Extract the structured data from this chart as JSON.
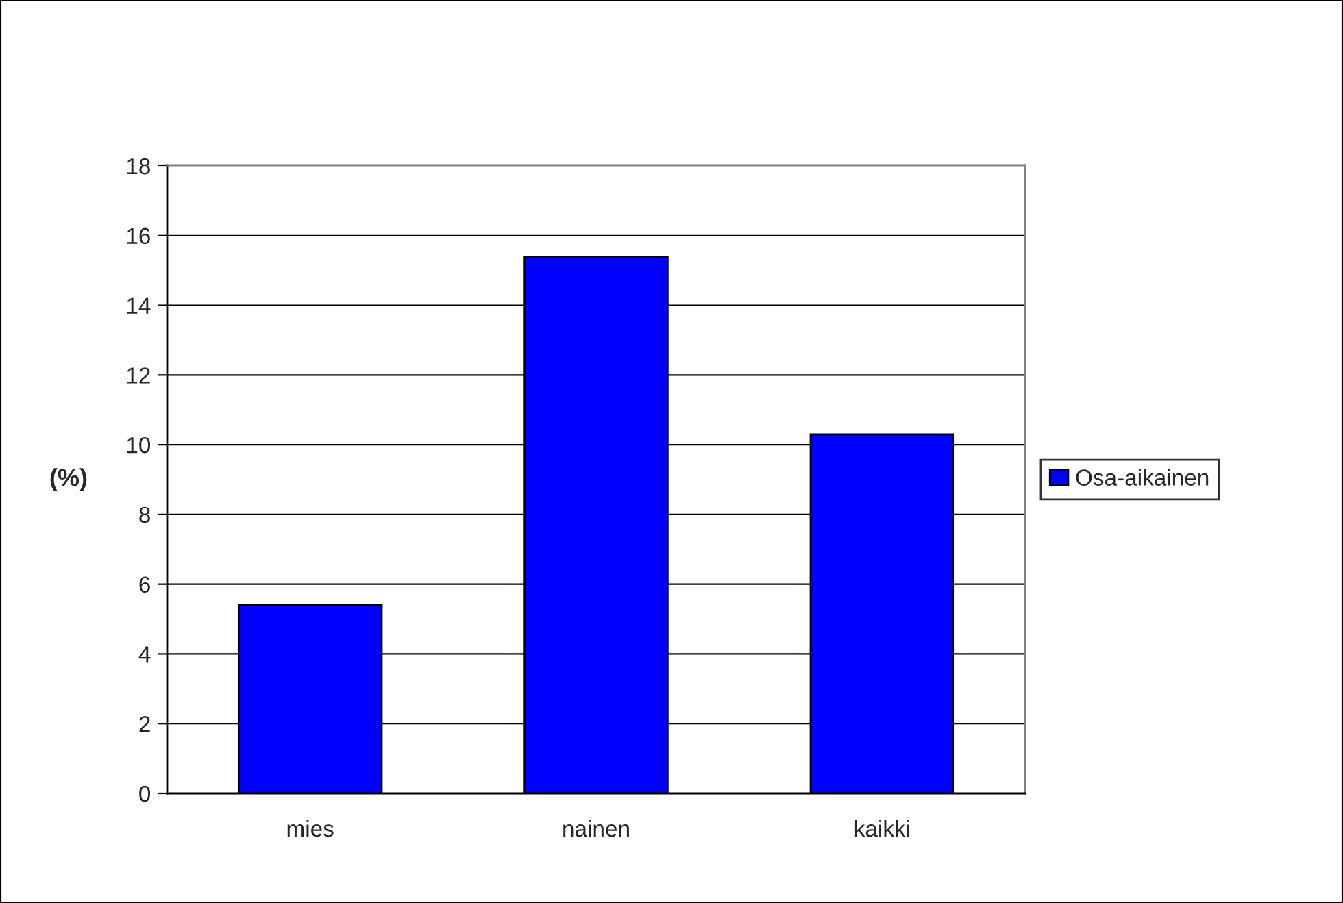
{
  "chart_data": {
    "type": "bar",
    "ylabel": "(%)",
    "categories": [
      "mies",
      "nainen",
      "kaikki"
    ],
    "series": [
      {
        "name": "Osa-aikainen",
        "color": "#0000ff",
        "values": [
          5.4,
          15.4,
          10.3
        ]
      }
    ],
    "ylim": [
      0,
      18
    ],
    "yticks": [
      0,
      2,
      4,
      6,
      8,
      10,
      12,
      14,
      16,
      18
    ],
    "grid": "y",
    "legend": "right"
  }
}
